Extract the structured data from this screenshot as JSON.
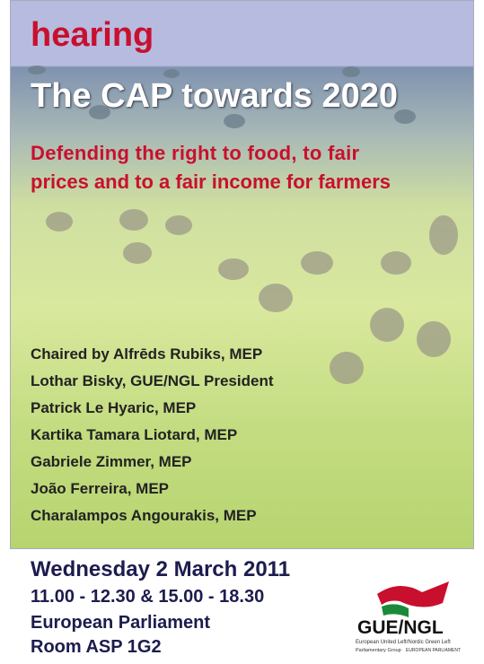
{
  "header": {
    "label": "hearing",
    "title": "The CAP towards 2020",
    "subtitle": [
      "Defending the right to food, to fair",
      "prices and to a fair income for farmers"
    ]
  },
  "speakers": [
    "Chaired by Alfrēds Rubiks, MEP",
    "Lothar Bisky, GUE/NGL President",
    "Patrick Le Hyaric, MEP",
    "Kartika Tamara Liotard, MEP",
    "Gabriele Zimmer, MEP",
    "João Ferreira, MEP",
    "Charalampos Angourakis, MEP"
  ],
  "event": {
    "date": "Wednesday 2 March 2011",
    "time": "11.00 - 12.30 & 15.00 - 18.30",
    "venue": "European Parliament",
    "room": "Room ASP 1G2"
  },
  "logo": {
    "name": "GUE/NGL",
    "tagline": "European United Left/Nordic Green Left",
    "group": "Parliamentary Group",
    "parliament": "EUROPEAN PARLIAMENT"
  }
}
